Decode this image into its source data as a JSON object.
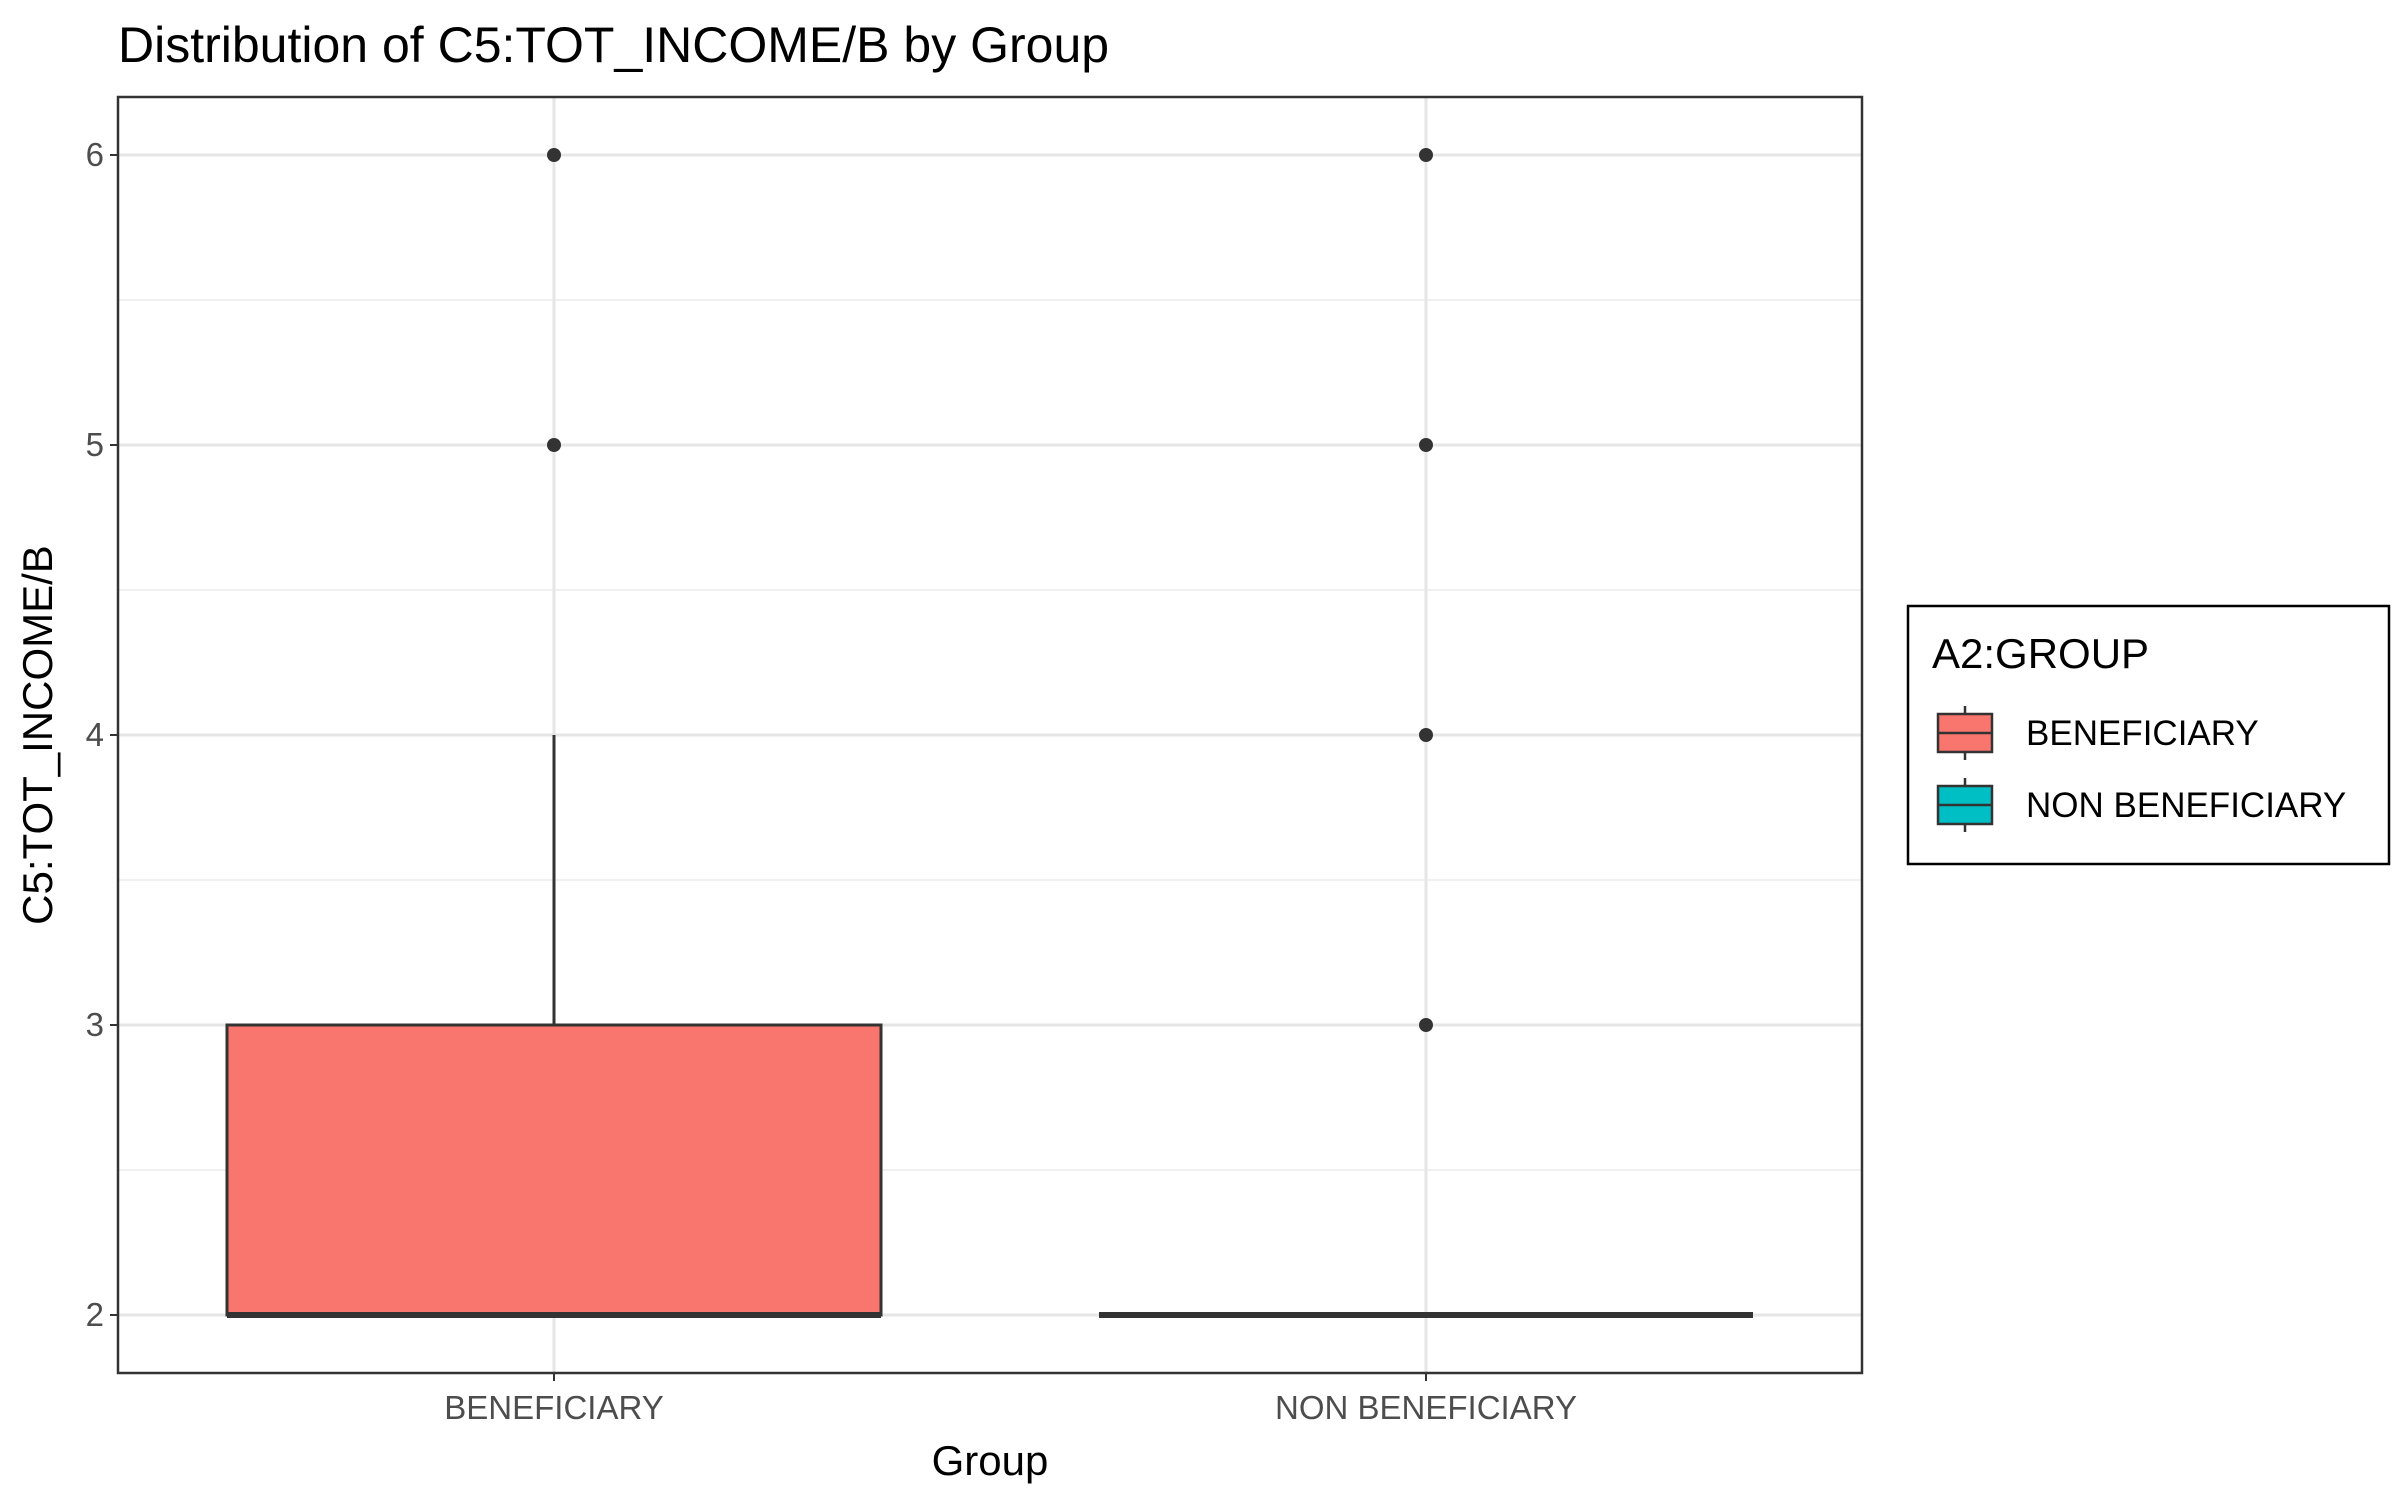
{
  "chart_data": {
    "type": "boxplot",
    "title": "Distribution of C5:TOT_INCOME/B by Group",
    "xlabel": "Group",
    "ylabel": "C5:TOT_INCOME/B",
    "categories": [
      "BENEFICIARY",
      "NON BENEFICIARY"
    ],
    "ylim": [
      1.8,
      6.2
    ],
    "yticks": [
      2,
      3,
      4,
      5,
      6
    ],
    "grid": true,
    "legend": {
      "title": "A2:GROUP",
      "position": "right",
      "entries": [
        "BENEFICIARY",
        "NON BENEFICIARY"
      ]
    },
    "series": [
      {
        "name": "BENEFICIARY",
        "color": "#F8766D",
        "min": 2,
        "q1": 2,
        "median": 2,
        "q3": 3,
        "max": 4,
        "outliers": [
          5,
          6
        ]
      },
      {
        "name": "NON BENEFICIARY",
        "color": "#00BFC4",
        "min": 2,
        "q1": 2,
        "median": 2,
        "q3": 2,
        "max": 2,
        "outliers": [
          3,
          4,
          5,
          6
        ]
      }
    ]
  }
}
